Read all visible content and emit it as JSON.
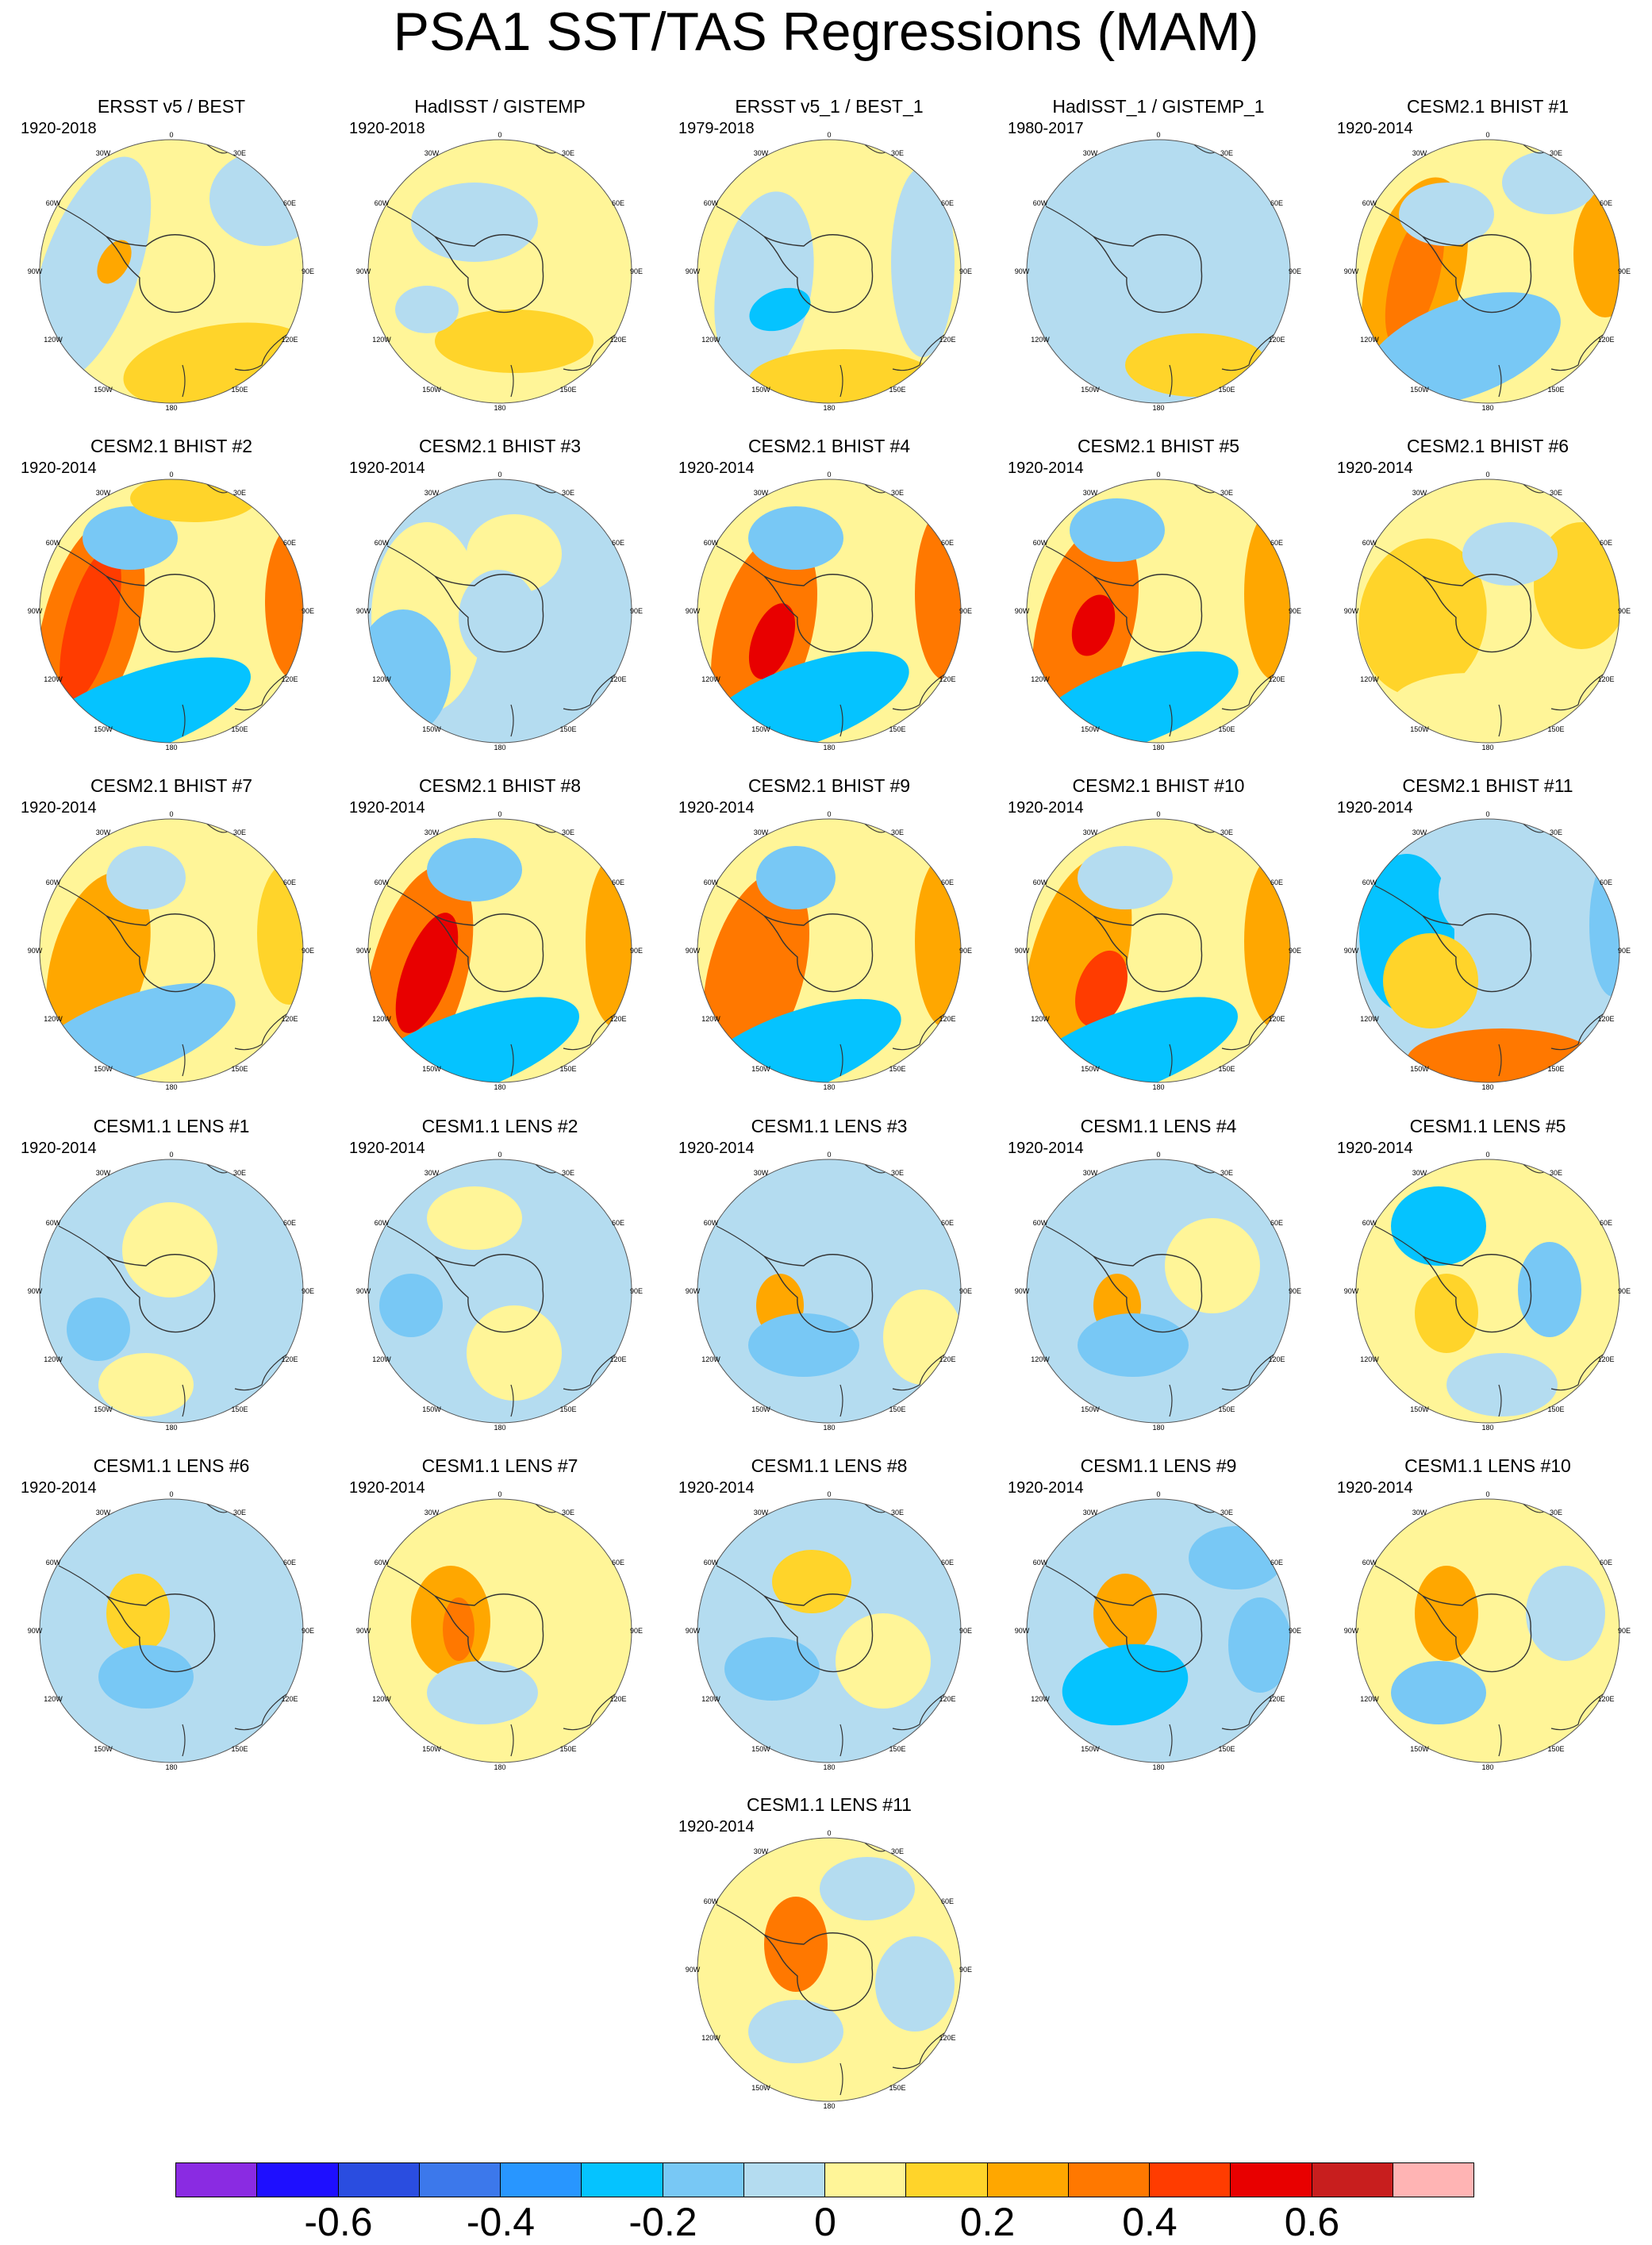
{
  "title": "PSA1 SST/TAS Regressions (MAM)",
  "lon_labels": [
    "0",
    "30E",
    "60E",
    "90E",
    "120E",
    "150E",
    "180",
    "150W",
    "120W",
    "90W",
    "60W",
    "30W"
  ],
  "colorbar": {
    "colors": [
      "#8a2be2",
      "#1e0fff",
      "#2a4de0",
      "#3c78eb",
      "#2896ff",
      "#05c3ff",
      "#78c8f5",
      "#b4dcf0",
      "#fff598",
      "#ffd42a",
      "#ffa700",
      "#ff7800",
      "#ff3c00",
      "#e80000",
      "#c81e1e",
      "#ffb4b4"
    ],
    "labels": [
      "-0.6",
      "-0.4",
      "-0.2",
      "0",
      "0.2",
      "0.4",
      "0.6"
    ]
  },
  "panels": [
    {
      "title": "ERSST v5 / BEST",
      "years": "1920-2018"
    },
    {
      "title": "HadISST / GISTEMP",
      "years": "1920-2018"
    },
    {
      "title": "ERSST v5_1 / BEST_1",
      "years": "1979-2018"
    },
    {
      "title": "HadISST_1 / GISTEMP_1",
      "years": "1980-2017"
    },
    {
      "title": "CESM2.1 BHIST #1",
      "years": "1920-2014"
    },
    {
      "title": "CESM2.1 BHIST #2",
      "years": "1920-2014"
    },
    {
      "title": "CESM2.1 BHIST #3",
      "years": "1920-2014"
    },
    {
      "title": "CESM2.1 BHIST #4",
      "years": "1920-2014"
    },
    {
      "title": "CESM2.1 BHIST #5",
      "years": "1920-2014"
    },
    {
      "title": "CESM2.1 BHIST #6",
      "years": "1920-2014"
    },
    {
      "title": "CESM2.1 BHIST #7",
      "years": "1920-2014"
    },
    {
      "title": "CESM2.1 BHIST #8",
      "years": "1920-2014"
    },
    {
      "title": "CESM2.1 BHIST #9",
      "years": "1920-2014"
    },
    {
      "title": "CESM2.1 BHIST #10",
      "years": "1920-2014"
    },
    {
      "title": "CESM2.1 BHIST #11",
      "years": "1920-2014"
    },
    {
      "title": "CESM1.1 LENS #1",
      "years": "1920-2014"
    },
    {
      "title": "CESM1.1 LENS #2",
      "years": "1920-2014"
    },
    {
      "title": "CESM1.1 LENS #3",
      "years": "1920-2014"
    },
    {
      "title": "CESM1.1 LENS #4",
      "years": "1920-2014"
    },
    {
      "title": "CESM1.1 LENS #5",
      "years": "1920-2014"
    },
    {
      "title": "CESM1.1 LENS #6",
      "years": "1920-2014"
    },
    {
      "title": "CESM1.1 LENS #7",
      "years": "1920-2014"
    },
    {
      "title": "CESM1.1 LENS #8",
      "years": "1920-2014"
    },
    {
      "title": "CESM1.1 LENS #9",
      "years": "1920-2014"
    },
    {
      "title": "CESM1.1 LENS #10",
      "years": "1920-2014"
    },
    {
      "title": "CESM1.1 LENS #11",
      "years": "1920-2014"
    }
  ]
}
